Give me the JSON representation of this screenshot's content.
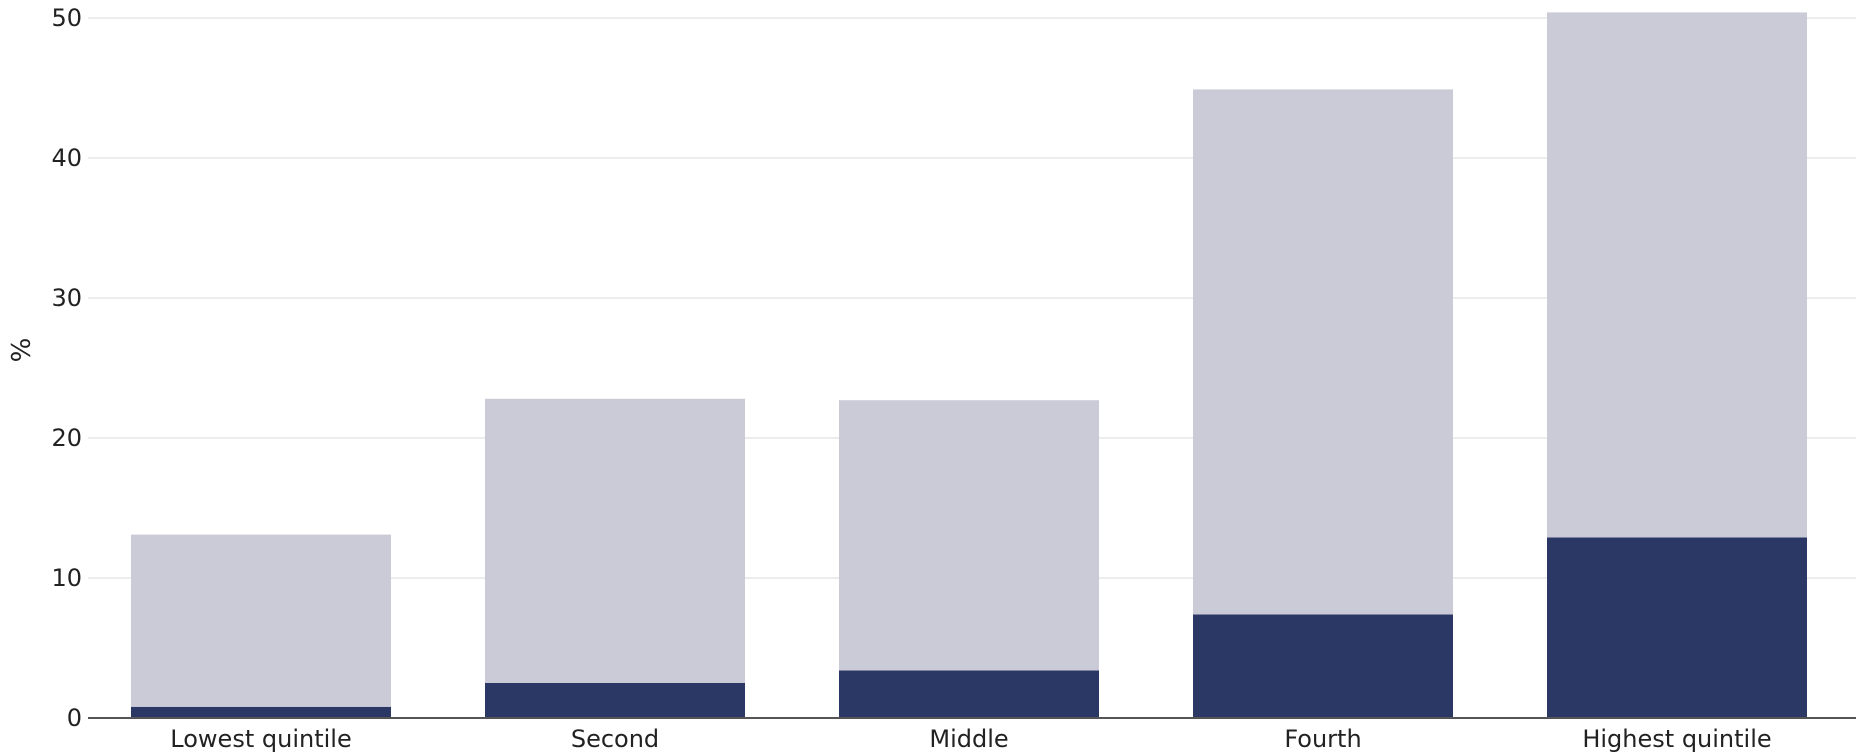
{
  "chart_data": {
    "type": "bar",
    "stacked": true,
    "categories": [
      "Lowest quintile",
      "Second",
      "Middle",
      "Fourth",
      "Highest quintile"
    ],
    "series": [
      {
        "values": [
          0.8,
          2.5,
          3.4,
          7.4,
          12.9
        ],
        "color": "#2b3765"
      },
      {
        "values": [
          12.3,
          20.3,
          19.3,
          37.5,
          37.5
        ],
        "color": "#cacbd7"
      }
    ],
    "ylabel": "%",
    "xlabel": "",
    "ylim": [
      0,
      50
    ],
    "yticks": [
      0,
      10,
      20,
      30,
      40,
      50
    ],
    "grid": true,
    "legend": "none"
  }
}
